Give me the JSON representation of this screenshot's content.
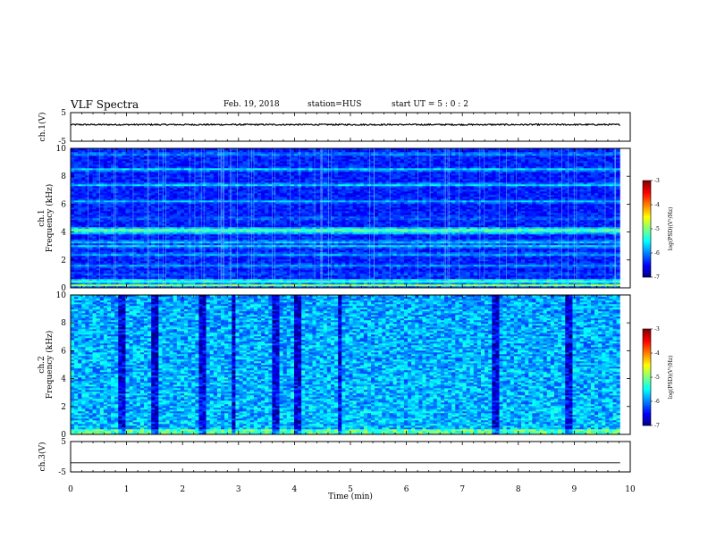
{
  "header": {
    "title": "VLF Spectra",
    "date": "Feb. 19, 2018",
    "station": "station=HUS",
    "start": "start  UT =   5 : 0  : 2"
  },
  "chart_data": {
    "type": "heatmap",
    "title": "VLF Spectra",
    "x": {
      "label": "Time  (min)",
      "range": [
        0,
        10
      ],
      "ticks": [
        0,
        1,
        2,
        3,
        4,
        5,
        6,
        7,
        8,
        9,
        10
      ]
    },
    "data_end_min": 9.82,
    "panels": [
      {
        "name": "ch1-waveform",
        "type": "line",
        "ylabel": "ch.1(V)",
        "ylim": [
          -5,
          5
        ],
        "yticks": [
          5,
          -5
        ],
        "level": 0.8,
        "noise": 0.25
      },
      {
        "name": "ch1-spectrogram",
        "type": "heatmap",
        "ylabel_line1": "ch.1",
        "ylabel_line2": "Frequency  (kHz)",
        "ylim": [
          0,
          10
        ],
        "yticks": [
          0,
          2,
          4,
          6,
          8,
          10
        ],
        "bands": [
          {
            "freq_khz": 0.2,
            "log_psd": -4.9
          },
          {
            "freq_khz": 0.5,
            "log_psd": -5.0
          },
          {
            "freq_khz": 1.0,
            "log_psd": -6.2
          },
          {
            "freq_khz": 1.6,
            "log_psd": -5.9
          },
          {
            "freq_khz": 2.4,
            "log_psd": -5.8
          },
          {
            "freq_khz": 3.0,
            "log_psd": -5.6
          },
          {
            "freq_khz": 3.3,
            "log_psd": -5.7
          },
          {
            "freq_khz": 4.0,
            "log_psd": -5.3
          },
          {
            "freq_khz": 4.2,
            "log_psd": -5.0
          },
          {
            "freq_khz": 5.0,
            "log_psd": -6.1
          },
          {
            "freq_khz": 6.2,
            "log_psd": -5.8
          },
          {
            "freq_khz": 7.4,
            "log_psd": -5.6
          },
          {
            "freq_khz": 8.5,
            "log_psd": -5.6
          },
          {
            "freq_khz": 9.6,
            "log_psd": -5.9
          }
        ]
      },
      {
        "name": "ch2-spectrogram",
        "type": "heatmap",
        "ylabel_line1": "ch.2",
        "ylabel_line2": "Frequency  (kHz)",
        "ylim": [
          0,
          10
        ],
        "yticks": [
          0,
          2,
          4,
          6,
          8,
          10
        ],
        "dark_columns_min": [
          0.88,
          0.95,
          1.48,
          1.52,
          2.35,
          2.9,
          3.65,
          4.05,
          4.8,
          7.55,
          7.62,
          8.9
        ]
      },
      {
        "name": "ch3-waveform",
        "type": "line",
        "ylabel": "ch.3(V)",
        "ylim": [
          -5,
          5
        ],
        "yticks": [
          5,
          -5
        ],
        "level": -2.0,
        "noise": 0.0
      }
    ],
    "colorbar": {
      "label": "log(PSD)(V²/Hz)",
      "range": [
        -7,
        -3
      ],
      "ticks": [
        -3,
        -4,
        -5,
        -6,
        -7
      ]
    }
  }
}
